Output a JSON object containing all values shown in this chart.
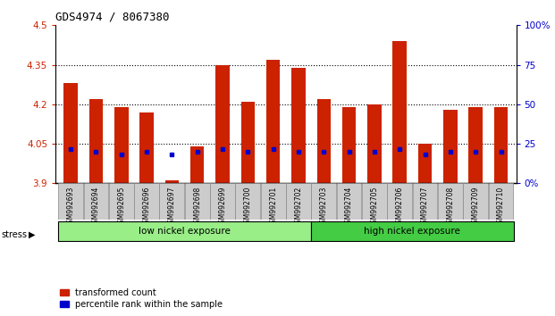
{
  "title": "GDS4974 / 8067380",
  "samples": [
    "GSM992693",
    "GSM992694",
    "GSM992695",
    "GSM992696",
    "GSM992697",
    "GSM992698",
    "GSM992699",
    "GSM992700",
    "GSM992701",
    "GSM992702",
    "GSM992703",
    "GSM992704",
    "GSM992705",
    "GSM992706",
    "GSM992707",
    "GSM992708",
    "GSM992709",
    "GSM992710"
  ],
  "red_top": [
    4.28,
    4.22,
    4.19,
    4.17,
    3.91,
    4.04,
    4.35,
    4.21,
    4.37,
    4.34,
    4.22,
    4.19,
    4.2,
    4.44,
    4.05,
    4.18,
    4.19,
    4.19
  ],
  "red_bottom": [
    3.9,
    3.9,
    3.9,
    3.9,
    3.9,
    3.9,
    3.9,
    3.9,
    3.9,
    3.9,
    3.9,
    3.9,
    3.9,
    3.9,
    3.9,
    3.9,
    3.9,
    3.9
  ],
  "blue_y": [
    4.03,
    4.02,
    4.01,
    4.02,
    4.01,
    4.02,
    4.03,
    4.02,
    4.03,
    4.02,
    4.02,
    4.02,
    4.02,
    4.03,
    4.01,
    4.02,
    4.02,
    4.02
  ],
  "ylim": [
    3.9,
    4.5
  ],
  "yticks_left": [
    3.9,
    4.05,
    4.2,
    4.35,
    4.5
  ],
  "yticks_right": [
    0,
    25,
    50,
    75,
    100
  ],
  "y_right_labels": [
    "0%",
    "25",
    "50",
    "75",
    "100%"
  ],
  "group1_label": "low nickel exposure",
  "group2_label": "high nickel exposure",
  "group1_count": 10,
  "stress_label": "stress",
  "legend_red": "transformed count",
  "legend_blue": "percentile rank within the sample",
  "bar_color": "#cc2200",
  "blue_color": "#0000cc",
  "group1_color": "#99ee88",
  "group2_color": "#44cc44",
  "axis_left_color": "#cc2200",
  "axis_right_color": "#0000cc"
}
